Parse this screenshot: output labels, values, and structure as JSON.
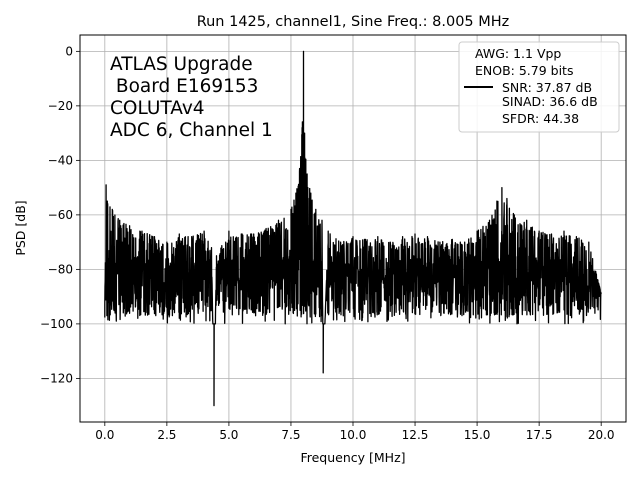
{
  "chart_data": {
    "type": "line",
    "title": "Run 1425, channel1, Sine Freq.: 8.005 MHz",
    "xlabel": "Frequency [MHz]",
    "ylabel": "PSD [dB]",
    "xlim": [
      -1.0,
      21.0
    ],
    "ylim": [
      -136,
      6
    ],
    "xticks": [
      0.0,
      2.5,
      5.0,
      7.5,
      10.0,
      12.5,
      15.0,
      17.5,
      20.0
    ],
    "xtick_labels": [
      "0.0",
      "2.5",
      "5.0",
      "7.5",
      "10.0",
      "12.5",
      "15.0",
      "17.5",
      "20.0"
    ],
    "yticks": [
      -120,
      -100,
      -80,
      -60,
      -40,
      -20,
      0
    ],
    "ytick_labels": [
      "−120",
      "−100",
      "−80",
      "−60",
      "−40",
      "−20",
      "0"
    ],
    "grid": true,
    "annotation": [
      "ATLAS Upgrade",
      " Board E169153",
      "COLUTAv4",
      "ADC 6, Channel 1"
    ],
    "legend": {
      "placement": "top-right",
      "entries": [
        "AWG: 1.1 Vpp",
        "ENOB: 5.79 bits",
        "SNR: 37.87 dB",
        "SINAD: 36.6 dB",
        "SFDR: 44.38"
      ]
    },
    "series": [
      {
        "color": "#000000",
        "noise_floor": {
          "x_range": [
            0.0,
            20.0
          ],
          "y_range": [
            -100,
            -62
          ]
        },
        "x": [
          0.0,
          0.05,
          0.1,
          0.3,
          0.6,
          1.0,
          1.5,
          2.0,
          2.5,
          3.0,
          3.5,
          4.0,
          4.3,
          4.4,
          4.5,
          5.0,
          5.5,
          6.0,
          6.5,
          7.0,
          7.5,
          7.7,
          7.85,
          7.95,
          8.005,
          8.05,
          8.15,
          8.3,
          8.5,
          8.75,
          8.8,
          9.0,
          9.5,
          10.0,
          10.5,
          11.0,
          11.5,
          12.0,
          12.5,
          13.0,
          13.5,
          14.0,
          14.5,
          15.0,
          15.5,
          15.8,
          16.0,
          16.2,
          16.5,
          17.0,
          17.5,
          18.0,
          18.5,
          19.0,
          19.5,
          20.0
        ],
        "y": [
          -93,
          -49,
          -55,
          -58,
          -62,
          -64,
          -66,
          -68,
          -70,
          -67,
          -68,
          -66,
          -72,
          -130,
          -75,
          -66,
          -67,
          -67,
          -65,
          -62,
          -58,
          -52,
          -43,
          -28,
          0,
          -30,
          -45,
          -52,
          -58,
          -62,
          -118,
          -66,
          -70,
          -68,
          -69,
          -68,
          -70,
          -68,
          -67,
          -68,
          -70,
          -69,
          -70,
          -66,
          -62,
          -55,
          -50,
          -54,
          -60,
          -62,
          -66,
          -67,
          -66,
          -68,
          -70,
          -89
        ]
      }
    ]
  }
}
